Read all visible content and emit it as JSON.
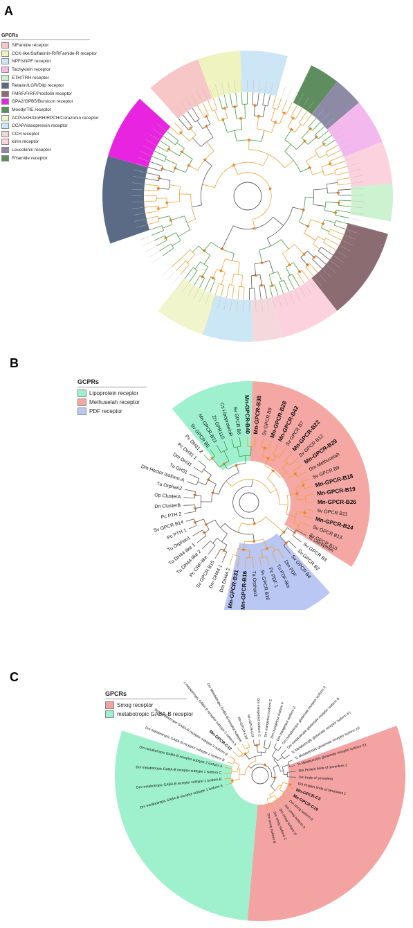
{
  "panels": {
    "a": {
      "letter": "A",
      "legend_title": "GPCRs",
      "legend": [
        {
          "label": "SIFamide receptor",
          "color": "#f7c6c6"
        },
        {
          "label": "CCK-like/Sulfakinin-R/RFamide-R receptor",
          "color": "#eef3c0"
        },
        {
          "label": "NPF/sNPF receptor",
          "color": "#cde6f5"
        },
        {
          "label": "Tachykinin receptor",
          "color": "#f3b9ef"
        },
        {
          "label": "ETH/TRH receptor",
          "color": "#cdf2cf"
        },
        {
          "label": "Relaxin/LGR/Dilp receptor",
          "color": "#5b6b85"
        },
        {
          "label": "FMRF/FIRF/Proctolin receptor",
          "color": "#8b6c70"
        },
        {
          "label": "GPA2/GPB5/Bursicon receptor",
          "color": "#e824e0"
        },
        {
          "label": "Moody/TIE receptor",
          "color": "#5e8d5f"
        },
        {
          "label": "ACP/AKH/GnRH/RPCH/Corazonin receptor",
          "color": "#f1f5cc"
        },
        {
          "label": "CCAP/Vasopressin receptor",
          "color": "#cbe6f4"
        },
        {
          "label": "CCH receptor",
          "color": "#f4d9dc"
        },
        {
          "label": "kinin receptor",
          "color": "#fbd2de"
        },
        {
          "label": "Leucokinin receptor",
          "color": "#8d8aa5"
        },
        {
          "label": "RYamide receptor",
          "color": "#5f8a62"
        }
      ]
    },
    "b": {
      "letter": "B",
      "legend_title": "GCPRs",
      "legend": [
        {
          "label": "Lipoprotein receptor",
          "color": "#9ef0cf"
        },
        {
          "label": "Methuselah receptor",
          "color": "#f4a7a3"
        },
        {
          "label": "PDF receptor",
          "color": "#b9c7f2"
        }
      ],
      "leaves": [
        {
          "label": "Sv GPCR B10",
          "bold": false
        },
        {
          "label": "Sv GPCR B13",
          "bold": false
        },
        {
          "label": "Mn-GPCR-B24",
          "bold": true
        },
        {
          "label": "Sv GPCR B11",
          "bold": false
        },
        {
          "label": "Mn-GPCR-B26",
          "bold": true
        },
        {
          "label": "Mn-GPCR-B19",
          "bold": true
        },
        {
          "label": "Mn-GPCR-B18",
          "bold": true
        },
        {
          "label": "Sv GPCR B9",
          "bold": false
        },
        {
          "label": "Dm Methuselah",
          "bold": false
        },
        {
          "label": "Mn-GPCR-B29",
          "bold": true
        },
        {
          "label": "Sv GPCR B12",
          "bold": false
        },
        {
          "label": "Mn-GPCR-B22",
          "bold": true
        },
        {
          "label": "Sv GPCR B7",
          "bold": false
        },
        {
          "label": "Mn-GPCR-B42",
          "bold": true
        },
        {
          "label": "Mn-GPCR-B28",
          "bold": true
        },
        {
          "label": "Sv GPCR B8",
          "bold": false
        },
        {
          "label": "Mn-GPCR-B38",
          "bold": true
        },
        {
          "label": "Mn-GPCR-B40",
          "bold": true
        },
        {
          "label": "Sv GPCR B6",
          "bold": false
        },
        {
          "label": "Cs LipoproteinR",
          "bold": false
        },
        {
          "label": "Zn GPR115",
          "bold": false
        },
        {
          "label": "Mn-GPCR-B21",
          "bold": false
        },
        {
          "label": "Sv GPCR B5",
          "bold": false
        },
        {
          "label": "Pc DH31 2",
          "bold": false
        },
        {
          "label": "Pc DH31 1",
          "bold": false
        },
        {
          "label": "Dm DH31",
          "bold": false
        },
        {
          "label": "Tu DH31",
          "bold": false
        },
        {
          "label": "Dm Hector isoform-A",
          "bold": false
        },
        {
          "label": "Tu Orphan2",
          "bold": false
        },
        {
          "label": "Op ClusterA",
          "bold": false
        },
        {
          "label": "Dn ClusterB",
          "bold": false
        },
        {
          "label": "Pc PTH 2",
          "bold": false
        },
        {
          "label": "Sv GPCR B14",
          "bold": false
        },
        {
          "label": "Pc PTH 1",
          "bold": false
        },
        {
          "label": "Tu Orphan1",
          "bold": false
        },
        {
          "label": "Tu DH44-like 1",
          "bold": false
        },
        {
          "label": "Tu DH44-like 2",
          "bold": false
        },
        {
          "label": "Pc CRF-like",
          "bold": false
        },
        {
          "label": "Sv GPCR B15",
          "bold": false
        },
        {
          "label": "Dm DH44 1",
          "bold": false
        },
        {
          "label": "Dm DH44 2",
          "bold": false
        },
        {
          "label": "Mn-GPCR-B31",
          "bold": true
        },
        {
          "label": "Mn-GPCR-B16",
          "bold": true
        },
        {
          "label": "Tu Orphan3",
          "bold": false
        },
        {
          "label": "Sv GPCR B16",
          "bold": false
        },
        {
          "label": "Pc PDF 1",
          "bold": false
        },
        {
          "label": "Tu PDF-like",
          "bold": false
        },
        {
          "label": "Dm PDF",
          "bold": false
        },
        {
          "label": "Sv GPCR B4",
          "bold": false
        },
        {
          "label": "Sv GPCR B2",
          "bold": false
        },
        {
          "label": "Sv GPCR B3",
          "bold": false
        },
        {
          "label": "Tc Latrophilin",
          "bold": false
        }
      ]
    },
    "c": {
      "letter": "C",
      "legend_title": "GPCRs",
      "legend": [
        {
          "label": "Smog receptor",
          "color": "#f4a3a3"
        },
        {
          "label": "metabotropic GABA-B receptor",
          "color": "#9ff0cc"
        }
      ],
      "leaves": [
        {
          "label": "Dm smog isoform B",
          "bold": false
        },
        {
          "label": "Dm smog isoform C",
          "bold": false
        },
        {
          "label": "Dm smog isoform D",
          "bold": false
        },
        {
          "label": "Dm smog isoform A",
          "bold": false
        },
        {
          "label": "Dm smog isoform E",
          "bold": false
        },
        {
          "label": "Mn-GPCR-C19",
          "bold": true
        },
        {
          "label": "Mn-GPCR-C3",
          "bold": true
        },
        {
          "label": "Dm Protein bride of sevenless 1",
          "bold": false
        },
        {
          "label": "Dm bride of sevenless",
          "bold": false
        },
        {
          "label": "Dm Protein bride of sevenless 2",
          "bold": false
        },
        {
          "label": "Tc Metabotropic glutamate receptor isoform X3",
          "bold": false
        },
        {
          "label": "Tc Metabotropic glutamate receptor isoform X2",
          "bold": false
        },
        {
          "label": "Tc Metabotropic glutamate receptor isoform X1",
          "bold": false
        },
        {
          "label": "Dm metabotropic glutamate receptor isoform B",
          "bold": false
        },
        {
          "label": "Dm metabotropic glutamate receptor isoform A",
          "bold": false
        },
        {
          "label": "Dm mangetout isoform G",
          "bold": false
        },
        {
          "label": "Dm mangetout isoform F",
          "bold": false
        },
        {
          "label": "Dm mangetout isoform E",
          "bold": false
        },
        {
          "label": "Dm mangetout isoform C",
          "bold": false
        },
        {
          "label": "Mn-GPCR-C11",
          "bold": false
        },
        {
          "label": "Mn-GPCR-C18",
          "bold": false
        },
        {
          "label": "Dm Metabotropic GABA-B receptor subtype",
          "bold": false
        },
        {
          "label": "Dm metabotropic GABA-B receptor subtype 3 isoform A",
          "bold": false
        },
        {
          "label": "Mn-GPCR-C12",
          "bold": true
        },
        {
          "label": "Dm metabotropic GABA-B receptor subtype 3 isoform B",
          "bold": false
        },
        {
          "label": "Dm metabotropic GABA-B receptor subtype 2 isoform B",
          "bold": false
        },
        {
          "label": "Dm metabotropic GABA-B receptor subtype 2 isoform A",
          "bold": false
        },
        {
          "label": "Dm metabotropic GABA-B receptor subtype 1 isoform C",
          "bold": false
        },
        {
          "label": "Dm metabotropic GABA-B receptor subtype 1 isoform B",
          "bold": false
        },
        {
          "label": "Dm metabotropic GABA-B receptor subtype 1 isoform A",
          "bold": false
        }
      ]
    }
  },
  "colors": {
    "orange_branch": "#f0a134",
    "green_branch": "#3f9a3a",
    "black_branch": "#555555",
    "node_marker": "#f07b20"
  }
}
